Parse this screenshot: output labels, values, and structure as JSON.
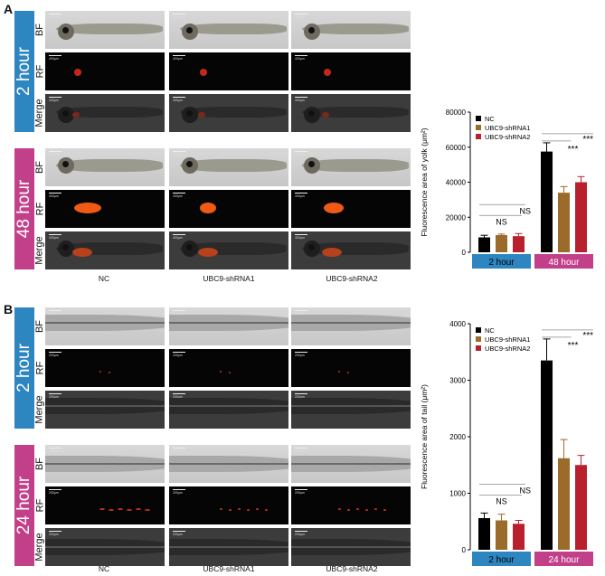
{
  "panels": [
    {
      "letter": "A",
      "groups": [
        {
          "time": "2 hour",
          "color": "#2e86c1",
          "rows": [
            "BF",
            "RF",
            "Merge"
          ]
        },
        {
          "time": "48 hour",
          "color": "#c2408a",
          "rows": [
            "BF",
            "RF",
            "Merge"
          ]
        }
      ],
      "columns": [
        "NC",
        "UBC9-shRNA1",
        "UBC9-shRNA2"
      ],
      "scale_label": "400μm"
    },
    {
      "letter": "B",
      "groups": [
        {
          "time": "2 hour",
          "color": "#2e86c1",
          "rows": [
            "BF",
            "RF",
            "Merge"
          ]
        },
        {
          "time": "24 hour",
          "color": "#c2408a",
          "rows": [
            "BF",
            "RF",
            "Merge"
          ]
        }
      ],
      "columns": [
        "NC",
        "UBC9-shRNA1",
        "UBC9-shRNA2"
      ],
      "scale_label": "200μm"
    }
  ],
  "chart_data": [
    {
      "type": "bar",
      "ylabel": "Fluorescence area of yolk (μm²)",
      "ylim": [
        0,
        80000
      ],
      "yticks": [
        "0",
        "20000",
        "40000",
        "60000",
        "80000"
      ],
      "groups": [
        "2 hour",
        "48 hour"
      ],
      "group_colors": [
        "#2e86c1",
        "#c2408a"
      ],
      "series": [
        {
          "name": "NC",
          "color": "#000000",
          "values": [
            8500,
            57500
          ],
          "errors": [
            1200,
            5000
          ]
        },
        {
          "name": "UBC9-shRNA1",
          "color": "#9a6b2a",
          "values": [
            9800,
            34000
          ],
          "errors": [
            600,
            3500
          ]
        },
        {
          "name": "UBC9-shRNA2",
          "color": "#b8202e",
          "values": [
            9200,
            40000
          ],
          "errors": [
            1500,
            3200
          ]
        }
      ],
      "annotations": [
        "NS",
        "NS",
        "***",
        "***"
      ]
    },
    {
      "type": "bar",
      "ylabel": "Fluorescence area of tail (μm²)",
      "ylim": [
        0,
        4000
      ],
      "yticks": [
        "0",
        "1000",
        "2000",
        "3000",
        "4000"
      ],
      "groups": [
        "2 hour",
        "24 hour"
      ],
      "group_colors": [
        "#2e86c1",
        "#c2408a"
      ],
      "series": [
        {
          "name": "NC",
          "color": "#000000",
          "values": [
            560,
            3350
          ],
          "errors": [
            90,
            380
          ]
        },
        {
          "name": "UBC9-shRNA1",
          "color": "#9a6b2a",
          "values": [
            520,
            1620
          ],
          "errors": [
            110,
            330
          ]
        },
        {
          "name": "UBC9-shRNA2",
          "color": "#b8202e",
          "values": [
            460,
            1500
          ],
          "errors": [
            60,
            170
          ]
        }
      ],
      "annotations": [
        "NS",
        "NS",
        "***",
        "***"
      ]
    }
  ]
}
